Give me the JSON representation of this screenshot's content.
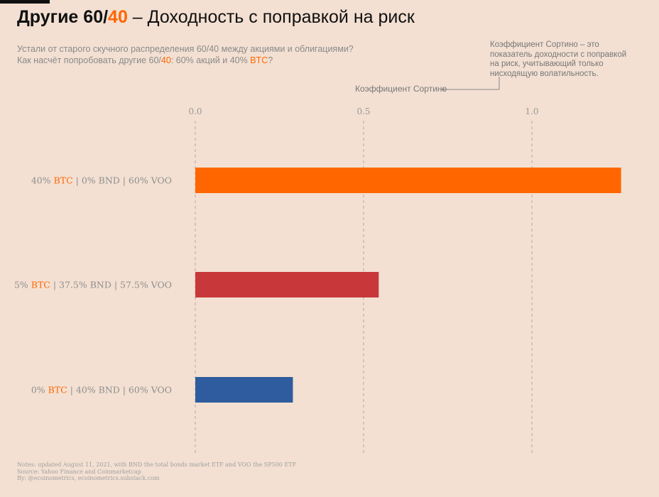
{
  "header": {
    "title_part1": "Другие 60/",
    "title_accent": "40",
    "title_part2": " – Доходность с поправкой на риск",
    "subtitle_line1": "Устали от старого скучного распределения 60/40 между акциями и облигациями?",
    "subtitle_line2_a": "Как насчёт попробовать другие 60/",
    "subtitle_line2_accent1": "40",
    "subtitle_line2_b": ": 60% акций и 40% ",
    "subtitle_line2_accent2": "BTC",
    "subtitle_line2_c": "?"
  },
  "annotation": {
    "note": "Коэффициент Сортино – это показатель доходности с поправкой на риск, учитывающий только нисходящую волатильность.",
    "label": "Коэффициент Сортино"
  },
  "chart_data": {
    "type": "bar",
    "orientation": "horizontal",
    "categories": [
      {
        "pre": "40% ",
        "btc": "BTC",
        "post": " | 0% BND | 60% VOO"
      },
      {
        "pre": "5% ",
        "btc": "BTC",
        "post": " | 37.5% BND | 57.5% VOO"
      },
      {
        "pre": "0% ",
        "btc": "BTC",
        "post": " | 40% BND | 60% VOO"
      }
    ],
    "values": [
      1.265,
      0.545,
      0.29
    ],
    "colors": [
      "#ff6600",
      "#c8373a",
      "#2e5c9e"
    ],
    "xticks": [
      "0.0",
      "0.5",
      "1.0"
    ],
    "xtick_values": [
      0,
      0.5,
      1.0
    ],
    "xlim": [
      0,
      1.3
    ],
    "grid": "vertical-dashed",
    "legend": "none"
  },
  "footer": {
    "notes": "Notes: updated August 11, 2021, with BND the total bonds market ETF and VOO the SP500 ETF",
    "source": "Source: Yahoo Finance and Coinmarketcap",
    "by": "By: @ecoinometrics, ecoinometrics.substack.com"
  }
}
